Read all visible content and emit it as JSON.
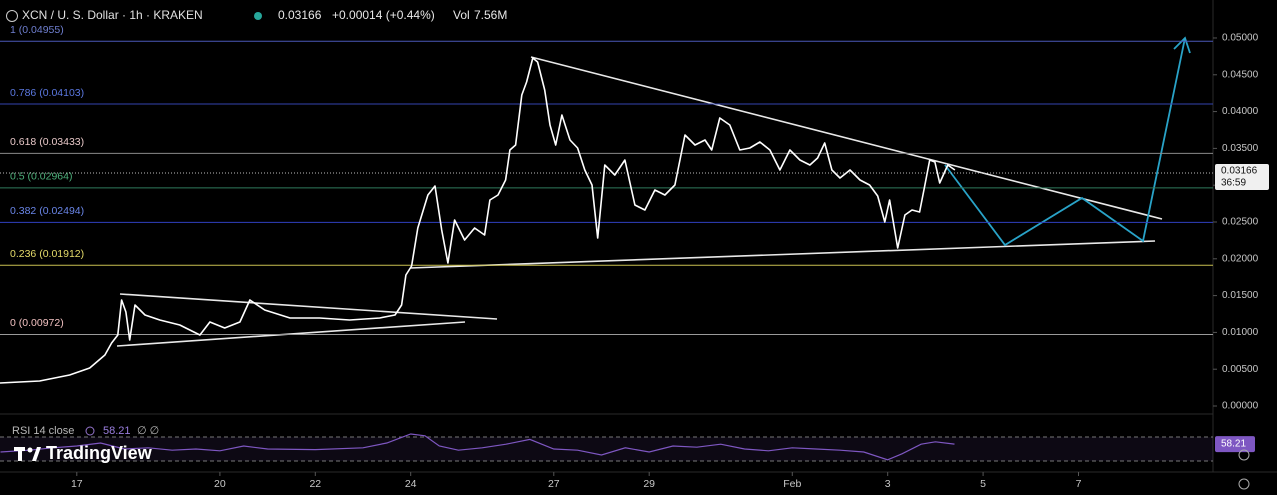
{
  "chart_data": {
    "type": "line",
    "title": "XCN / U. S. Dollar · 1h · KRAKEN",
    "last_price": 0.03166,
    "change": "+0.00014 (+0.44%)",
    "volume_label": "Vol",
    "volume": "7.56M",
    "countdown": "36:59",
    "logo": "TradingView",
    "x": [
      15.39,
      16.22,
      16.85,
      17.27,
      17.59,
      17.73,
      17.86,
      17.94,
      18.03,
      18.11,
      18.22,
      18.43,
      18.74,
      19.16,
      19.58,
      19.79,
      20.1,
      20.42,
      20.63,
      20.94,
      21.47,
      22.09,
      22.72,
      23.35,
      23.67,
      23.81,
      23.9,
      24.02,
      24.15,
      24.36,
      24.51,
      24.65,
      24.78,
      24.92,
      25.13,
      25.34,
      25.55,
      25.66,
      25.83,
      25.99,
      26.08,
      26.2,
      26.33,
      26.43,
      26.56,
      26.66,
      26.81,
      26.92,
      27.04,
      27.17,
      27.34,
      27.5,
      27.65,
      27.8,
      27.92,
      28.07,
      28.28,
      28.49,
      28.7,
      28.91,
      29.12,
      29.33,
      29.54,
      29.75,
      29.96,
      30.17,
      30.31,
      30.48,
      30.69,
      30.9,
      31.11,
      31.32,
      31.53,
      31.74,
      31.95,
      32.16,
      32.37,
      32.53,
      32.68,
      32.83,
      33.0,
      33.21,
      33.42,
      33.62,
      33.79,
      33.94,
      34.04,
      34.21,
      34.36,
      34.51,
      34.67,
      34.78,
      34.88,
      34.99,
      35.09,
      35.26,
      35.41
    ],
    "series": [
      {
        "color": "#ffffff",
        "values": [
          0.00313,
          0.0034,
          0.00421,
          0.00516,
          0.00693,
          0.00856,
          0.00965,
          0.0144,
          0.01277,
          0.00897,
          0.01372,
          0.01236,
          0.01168,
          0.01101,
          0.00965,
          0.01141,
          0.0106,
          0.01141,
          0.0144,
          0.01304,
          0.01196,
          0.01196,
          0.01168,
          0.01196,
          0.01236,
          0.01372,
          0.0178,
          0.01902,
          0.02418,
          0.02867,
          0.02989,
          0.02391,
          0.01943,
          0.02527,
          0.02255,
          0.02418,
          0.02323,
          0.02799,
          0.02867,
          0.03071,
          0.03478,
          0.03546,
          0.04226,
          0.04402,
          0.04728,
          0.04674,
          0.04293,
          0.03818,
          0.03546,
          0.03954,
          0.03614,
          0.03505,
          0.03207,
          0.03003,
          0.02283,
          0.03274,
          0.03139,
          0.03342,
          0.02731,
          0.02663,
          0.02935,
          0.02867,
          0.03003,
          0.03682,
          0.03546,
          0.03614,
          0.03478,
          0.03913,
          0.03818,
          0.03478,
          0.03505,
          0.03587,
          0.03478,
          0.03207,
          0.03478,
          0.03342,
          0.03274,
          0.0337,
          0.03573,
          0.03207,
          0.03098,
          0.03207,
          0.03071,
          0.03003,
          0.02853,
          0.025,
          0.02799,
          0.02147,
          0.02595,
          0.02663,
          0.02636,
          0.03003,
          0.03342,
          0.03315,
          0.0303,
          0.03274,
          0.03207
        ]
      }
    ],
    "xlim": [
      15.39,
      40.82
    ],
    "xticks": [
      17,
      20,
      22,
      24,
      27,
      29,
      {
        "value": 32,
        "label": "Feb"
      },
      {
        "value": 34,
        "label": "3"
      },
      {
        "value": 36,
        "label": "5"
      },
      {
        "value": 38,
        "label": "7"
      }
    ],
    "ylim": [
      -0.00095,
      0.05516
    ],
    "yticks": [
      {
        "value": 0.05,
        "label": "0.05000"
      },
      {
        "value": 0.045,
        "label": "0.04500"
      },
      {
        "value": 0.04,
        "label": "0.04000"
      },
      {
        "value": 0.035,
        "label": "0.03500"
      },
      {
        "value": 0.03,
        "label": "0.03000"
      },
      {
        "value": 0.025,
        "label": "0.02500"
      },
      {
        "value": 0.02,
        "label": "0.02000"
      },
      {
        "value": 0.015,
        "label": "0.01500"
      },
      {
        "value": 0.01,
        "label": "0.01000"
      },
      {
        "value": 0.005,
        "label": "0.00500"
      },
      {
        "value": 0,
        "label": "0.00000"
      }
    ],
    "grid": false,
    "fib": [
      {
        "label": "1 (0.04955)",
        "value": 0.04955,
        "color": "#4a58b8",
        "label_color": "#6f7fd0"
      },
      {
        "label": "0.786 (0.04103)",
        "value": 0.04103,
        "color": "#3344b0",
        "label_color": "#5b78e0"
      },
      {
        "label": "0.618 (0.03433)",
        "value": 0.03433,
        "color": "#8a8a8a",
        "label_color": "#e8c8c8"
      },
      {
        "label": "0.5 (0.02964)",
        "value": 0.02964,
        "color": "#2f7a5c",
        "label_color": "#4caf7a"
      },
      {
        "label": "0.382 (0.02494)",
        "value": 0.02494,
        "color": "#3040c0",
        "label_color": "#6a86e8"
      },
      {
        "label": "0.236 (0.01912)",
        "value": 0.01912,
        "color": "#c9c050",
        "label_color": "#e6dc6a"
      },
      {
        "label": "0 (0.00972)",
        "value": 0.00972,
        "color": "#9a9a9a",
        "label_color": "#f0c0c0"
      }
    ],
    "rsi": {
      "label": "RSI 14 close",
      "extra": "∅ ∅",
      "color": "#7e57c2",
      "last_value": 58.21,
      "ylim": [
        11.7,
        105
      ],
      "bands": [
        30,
        70
      ],
      "x": [
        15.4,
        16,
        16.5,
        17,
        17.5,
        18,
        18.5,
        19,
        19.5,
        20,
        20.5,
        21,
        22,
        23,
        23.5,
        24,
        24.3,
        24.6,
        25,
        25.5,
        26,
        26.5,
        27,
        27.5,
        28,
        28.5,
        29,
        29.5,
        30,
        30.5,
        31,
        31.5,
        32,
        32.5,
        33,
        33.5,
        34,
        34.3,
        34.7,
        35,
        35.4
      ],
      "values": [
        45,
        48,
        52,
        55,
        60,
        50,
        52,
        48,
        50,
        47,
        55,
        50,
        49,
        52,
        60,
        75,
        72,
        55,
        48,
        52,
        58,
        66,
        50,
        48,
        40,
        52,
        45,
        55,
        53,
        58,
        50,
        47,
        52,
        50,
        48,
        45,
        32,
        42,
        58,
        62,
        58.21
      ]
    }
  }
}
